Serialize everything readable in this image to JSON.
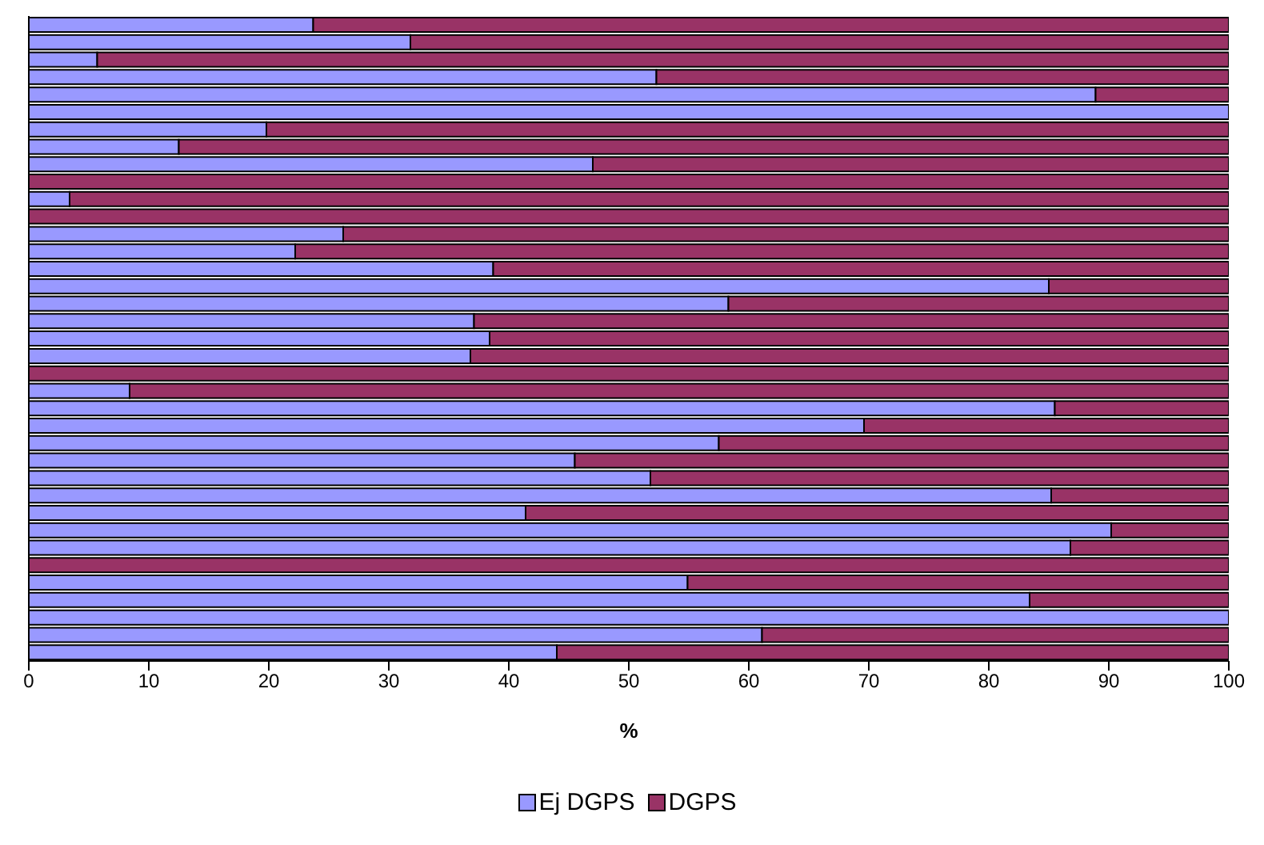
{
  "chart_data": {
    "type": "bar",
    "orientation": "horizontal",
    "stacked": true,
    "xlabel": "%",
    "categories": [
      null,
      null,
      null,
      null,
      null,
      null,
      null,
      null,
      null,
      null,
      null,
      null,
      null,
      null,
      null,
      null,
      null,
      null,
      null,
      null,
      null,
      null,
      null,
      null,
      null,
      null,
      null,
      null,
      null,
      null,
      null,
      null,
      null,
      null,
      null,
      null,
      null
    ],
    "series": [
      {
        "name": "Ej DGPS",
        "color": "#9999ff",
        "values": [
          23.7,
          31.8,
          5.7,
          52.3,
          88.9,
          100,
          19.8,
          12.5,
          47.0,
          0,
          3.4,
          0,
          26.2,
          22.2,
          38.7,
          85.0,
          58.3,
          37.1,
          38.4,
          36.8,
          0,
          8.4,
          85.5,
          69.6,
          57.5,
          45.5,
          51.8,
          85.2,
          41.4,
          90.2,
          86.8,
          0,
          54.9,
          83.4,
          100,
          61.1,
          44.0
        ]
      },
      {
        "name": "DGPS",
        "color": "#993366",
        "values": [
          76.3,
          68.2,
          94.3,
          47.7,
          11.1,
          0,
          80.2,
          87.5,
          53.0,
          100,
          96.6,
          100,
          73.8,
          77.8,
          61.3,
          15.0,
          41.7,
          62.9,
          61.6,
          63.2,
          100,
          91.6,
          14.5,
          30.4,
          42.5,
          54.5,
          48.2,
          14.8,
          58.6,
          9.8,
          13.2,
          100,
          45.1,
          16.6,
          0,
          38.9,
          56.0
        ]
      }
    ],
    "xlim": [
      0,
      100
    ],
    "xticks": [
      0,
      10,
      20,
      30,
      40,
      50,
      60,
      70,
      80,
      90,
      100
    ],
    "grid": false,
    "legend": "bottom"
  }
}
